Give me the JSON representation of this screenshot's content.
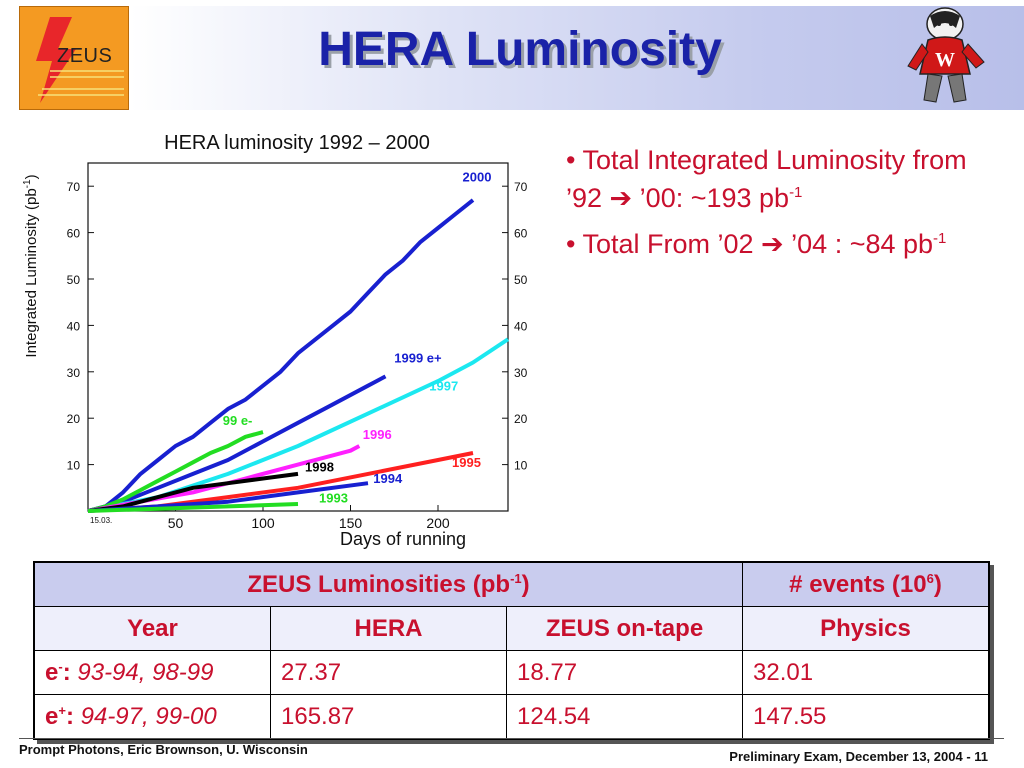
{
  "slide": {
    "title": "HERA Luminosity",
    "logo_text": "ZEUS",
    "footer_left": "Prompt Photons, Eric Brownson, U. Wisconsin",
    "footer_right": "Preliminary Exam, December 13, 2004 - 11"
  },
  "bullets": [
    {
      "prefix": "Total Integrated Luminosity from ’92 ",
      "arrow": "➔",
      "mid": " ’00: ~193 pb",
      "sup": "-1"
    },
    {
      "prefix": "Total From ’02 ",
      "arrow": "➔",
      "mid": " ’04 : ~84 pb",
      "sup": "-1"
    }
  ],
  "table": {
    "header_main": "ZEUS Luminosities (pb",
    "header_main_sup": "-1",
    "header_main_end": ")",
    "header_events": "# events (10",
    "header_events_sup": "6",
    "header_events_end": ")",
    "cols": [
      "Year",
      "HERA",
      "ZEUS on-tape",
      "Physics"
    ],
    "rows": [
      {
        "particle": "e",
        "charge": "-",
        "sep": ":",
        "years": " 93-94, 98-99",
        "hera": "27.37",
        "zeus": "18.77",
        "physics": "32.01"
      },
      {
        "particle": "e",
        "charge": "+",
        "sep": ":",
        "years": " 94-97, 99-00",
        "hera": "165.87",
        "zeus": "124.54",
        "physics": "147.55"
      }
    ]
  },
  "chart_data": {
    "type": "line",
    "title": "HERA luminosity 1992 – 2000",
    "xlabel": "Days of running",
    "ylabel": "Integrated Luminosity (pb",
    "ylabel_sup": "-1",
    "ylabel_end": ")",
    "xlim": [
      0,
      240
    ],
    "ylim": [
      0,
      75
    ],
    "x_ticks": [
      50,
      100,
      150,
      200
    ],
    "x_start_label": "15.03.",
    "y_ticks": [
      10,
      20,
      30,
      40,
      50,
      60,
      70
    ],
    "series": [
      {
        "name": "2000",
        "color": "#1820d0",
        "x": [
          0,
          10,
          20,
          30,
          40,
          50,
          60,
          70,
          80,
          90,
          100,
          110,
          120,
          130,
          140,
          150,
          160,
          170,
          180,
          190,
          200,
          210,
          220
        ],
        "y": [
          0,
          1,
          4,
          8,
          11,
          14,
          16,
          19,
          22,
          24,
          27,
          30,
          34,
          37,
          40,
          43,
          47,
          51,
          54,
          58,
          61,
          64,
          67
        ]
      },
      {
        "name": "1999 e+",
        "color": "#1820d0",
        "x": [
          0,
          20,
          40,
          60,
          80,
          100,
          120,
          140,
          160,
          170
        ],
        "y": [
          0,
          2,
          5,
          8,
          11,
          15,
          19,
          23,
          27,
          29
        ]
      },
      {
        "name": "1997",
        "color": "#1ce8f0",
        "x": [
          0,
          40,
          80,
          120,
          160,
          200,
          220,
          240
        ],
        "y": [
          0,
          3,
          8,
          14,
          21,
          28,
          32,
          37
        ]
      },
      {
        "name": "99 e-",
        "color": "#22dd22",
        "x": [
          0,
          10,
          20,
          30,
          40,
          50,
          60,
          70,
          80,
          90,
          100
        ],
        "y": [
          0,
          1,
          2.5,
          4.5,
          6.5,
          8.5,
          10.5,
          12.5,
          14,
          16,
          17
        ]
      },
      {
        "name": "1996",
        "color": "#ff20ff",
        "x": [
          0,
          30,
          60,
          90,
          120,
          150,
          155
        ],
        "y": [
          0,
          2,
          4,
          7,
          10,
          13,
          14
        ]
      },
      {
        "name": "1995",
        "color": "#ff2020",
        "x": [
          0,
          40,
          80,
          120,
          160,
          200,
          220
        ],
        "y": [
          0,
          1,
          3,
          5,
          8,
          11,
          12.5
        ]
      },
      {
        "name": "1998",
        "color": "#000000",
        "x": [
          0,
          20,
          40,
          60,
          80,
          100,
          120
        ],
        "y": [
          0,
          1,
          3,
          5,
          6,
          7,
          8
        ]
      },
      {
        "name": "1994",
        "color": "#1820d0",
        "x": [
          0,
          40,
          80,
          120,
          160
        ],
        "y": [
          0,
          1,
          2,
          4,
          6
        ]
      },
      {
        "name": "1993",
        "color": "#22dd22",
        "x": [
          0,
          40,
          80,
          120
        ],
        "y": [
          0,
          0.5,
          1,
          1.5
        ]
      }
    ],
    "labels": [
      {
        "series": "2000",
        "x": 214,
        "y": 71
      },
      {
        "series": "1999 e+",
        "x": 175,
        "y": 32
      },
      {
        "series": "1997",
        "x": 195,
        "y": 26
      },
      {
        "series": "99 e-",
        "x": 77,
        "y": 18.5
      },
      {
        "series": "1996",
        "x": 157,
        "y": 15.5
      },
      {
        "series": "1995",
        "x": 208,
        "y": 9.5
      },
      {
        "series": "1998",
        "x": 124,
        "y": 8.5
      },
      {
        "series": "1994",
        "x": 163,
        "y": 6
      },
      {
        "series": "1993",
        "x": 132,
        "y": 1.8
      }
    ]
  }
}
